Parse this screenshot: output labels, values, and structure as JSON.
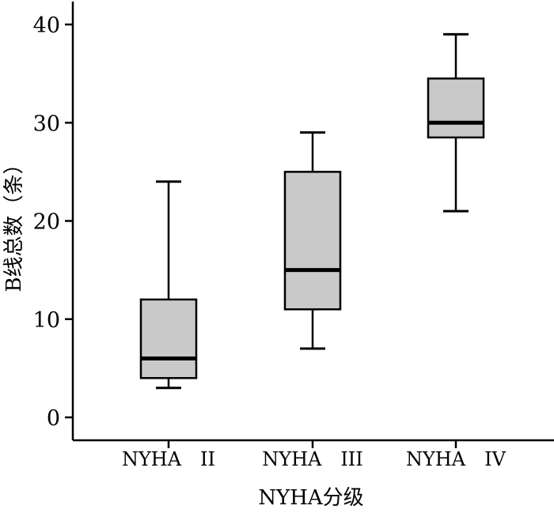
{
  "chart_data": {
    "type": "box",
    "xlabel": "NYHA分级",
    "ylabel": "B线总数（条）",
    "ylim": [
      0,
      40
    ],
    "yticks": [
      0,
      10,
      20,
      30,
      40
    ],
    "categories": [
      "NYHA　II",
      "NYHA　III",
      "NYHA　IV"
    ],
    "boxes": [
      {
        "category": "NYHA　II",
        "min": 3,
        "q1": 4,
        "median": 6,
        "q3": 12,
        "max": 24
      },
      {
        "category": "NYHA　III",
        "min": 7,
        "q1": 11,
        "median": 15,
        "q3": 25,
        "max": 29
      },
      {
        "category": "NYHA　IV",
        "min": 21,
        "q1": 28.5,
        "median": 30,
        "q3": 34.5,
        "max": 39
      }
    ],
    "box_color": "#c9c9c9",
    "grid": false
  }
}
